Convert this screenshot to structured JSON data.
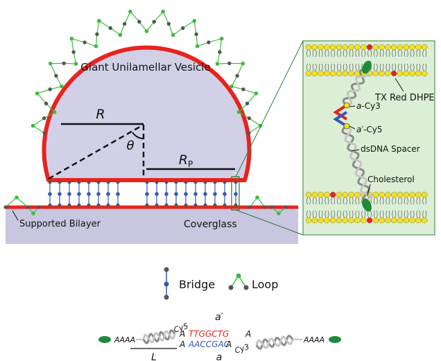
{
  "labels": {
    "vesicle": "Giant Unilamellar Vesicle",
    "R": "R",
    "theta": "θ",
    "Rp_main": "R",
    "Rp_sub": "P",
    "supported_bilayer": "Supported Bilayer",
    "coverglass": "Coverglass",
    "tx_red": "TX Red DHPE",
    "a_cy3_a": "a",
    "a_cy3_b": "-Cy3",
    "a_prime_cy5_a": "a′",
    "a_prime_cy5_b": "-Cy5",
    "dsdna_spacer": "dsDNA Spacer",
    "cholesterol": "Cholesterol"
  },
  "legend": {
    "bridge": "Bridge",
    "loop": "Loop"
  },
  "sequence": {
    "a_prime": "a′",
    "a": "a",
    "aaaa_left": "AAAA",
    "aaaa_right": "AAAA",
    "cy5": "Cy5",
    "cy3": "Cy3",
    "A1": "A",
    "A2": "A",
    "A3": "A",
    "A4": "A",
    "top_strand": "TTGGCTG",
    "bottom_strand": "AACCGAC",
    "L": "L"
  },
  "colors": {
    "membrane_red": "#e8231e",
    "vesicle_fill": "#d2d0e6",
    "coverglass_fill": "#c9c6e0",
    "inset_bg": "#dcefd6",
    "loop_green": "#3dbb3d",
    "bridge_blue": "#3a56b8",
    "lipid_yellow": "#f4e21a",
    "lipid_red": "#e8231e",
    "cholesterol_green": "#1f8a3a",
    "seq_red": "#e8231e",
    "seq_blue": "#3a56b8"
  }
}
